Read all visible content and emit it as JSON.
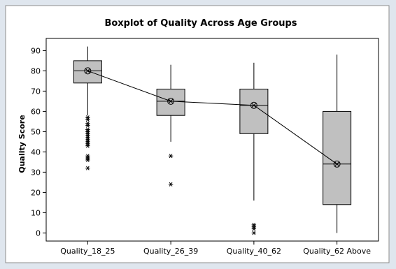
{
  "chart_data": {
    "type": "boxplot",
    "title": "Boxplot of Quality Across Age Groups",
    "xlabel": "",
    "ylabel": "Quality Score",
    "ylim": [
      -4,
      96
    ],
    "yticks": [
      0,
      10,
      20,
      30,
      40,
      50,
      60,
      70,
      80,
      90
    ],
    "categories": [
      "Quality_18_25",
      "Quality_26_39",
      "Quality_40_62",
      "Quality_62 Above"
    ],
    "boxes": [
      {
        "whisker_low": 58,
        "q1": 74,
        "median": 80,
        "q3": 85,
        "whisker_high": 92,
        "mean": 80,
        "outliers": [
          57,
          56,
          54,
          53,
          51,
          50,
          49,
          48,
          47,
          46,
          45,
          44,
          43,
          38,
          37,
          36,
          32
        ]
      },
      {
        "whisker_low": 45,
        "q1": 58,
        "median": 65,
        "q3": 71,
        "whisker_high": 83,
        "mean": 65,
        "outliers": [
          38,
          24
        ]
      },
      {
        "whisker_low": 16,
        "q1": 49,
        "median": 63,
        "q3": 71,
        "whisker_high": 84,
        "mean": 63,
        "outliers": [
          4,
          3,
          2,
          0
        ]
      },
      {
        "whisker_low": 0,
        "q1": 14,
        "median": 34,
        "q3": 60,
        "whisker_high": 88,
        "mean": 34,
        "outliers": []
      }
    ],
    "mean_connect_line": true,
    "grid": false,
    "colors": {
      "box_fill": "#c0c0c0",
      "stroke": "#000000",
      "plot_bg": "#ffffff",
      "frame_bg": "#dfe6ee"
    }
  }
}
